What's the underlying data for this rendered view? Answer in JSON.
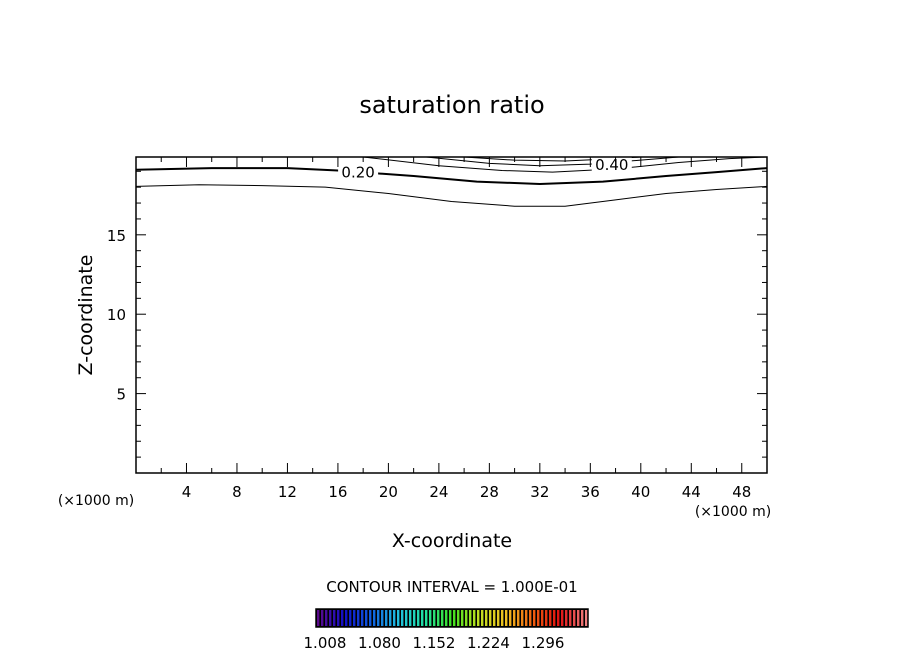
{
  "chart_data": {
    "type": "line",
    "subtype": "contour",
    "title": "saturation ratio",
    "xlabel": "X-coordinate",
    "ylabel": "Z-coordinate",
    "x_unit_left": "(×1000 m)",
    "x_unit_right": "(×1000 m)",
    "xlim": [
      0,
      50
    ],
    "ylim": [
      0,
      19.9
    ],
    "xticks": [
      4,
      8,
      12,
      16,
      20,
      24,
      28,
      32,
      36,
      40,
      44,
      48
    ],
    "xtick_labels": [
      "4",
      "8",
      "12",
      "16",
      "20",
      "24",
      "28",
      "32",
      "36",
      "40",
      "44",
      "48"
    ],
    "yticks": [
      5,
      10,
      15
    ],
    "ytick_labels": [
      "5",
      "10",
      "15"
    ],
    "grid": false,
    "contours": [
      {
        "name": "lower",
        "thick": false,
        "points": [
          [
            0,
            18.05
          ],
          [
            5,
            18.15
          ],
          [
            10,
            18.1
          ],
          [
            15,
            18.0
          ],
          [
            20,
            17.6
          ],
          [
            25,
            17.1
          ],
          [
            30,
            16.8
          ],
          [
            34,
            16.8
          ],
          [
            38,
            17.2
          ],
          [
            42,
            17.6
          ],
          [
            46,
            17.85
          ],
          [
            50,
            18.05
          ]
        ]
      },
      {
        "name": "0.20",
        "thick": true,
        "points": [
          [
            0,
            19.1
          ],
          [
            6,
            19.2
          ],
          [
            12,
            19.2
          ],
          [
            16,
            19.05
          ],
          [
            22,
            18.7
          ],
          [
            27,
            18.35
          ],
          [
            32,
            18.2
          ],
          [
            37,
            18.35
          ],
          [
            42,
            18.7
          ],
          [
            46,
            18.95
          ],
          [
            50,
            19.2
          ]
        ]
      },
      {
        "name": "upper1",
        "thick": false,
        "points": [
          [
            18,
            19.9
          ],
          [
            24,
            19.35
          ],
          [
            29,
            19.05
          ],
          [
            33,
            18.95
          ],
          [
            38,
            19.15
          ],
          [
            43,
            19.55
          ],
          [
            47,
            19.8
          ],
          [
            50,
            19.9
          ]
        ]
      },
      {
        "name": "upper2",
        "thick": false,
        "points": [
          [
            23,
            19.9
          ],
          [
            28,
            19.5
          ],
          [
            32,
            19.35
          ],
          [
            36,
            19.45
          ],
          [
            40,
            19.7
          ],
          [
            43,
            19.9
          ]
        ]
      },
      {
        "name": "upper3",
        "thick": false,
        "points": [
          [
            26,
            19.9
          ],
          [
            30,
            19.7
          ],
          [
            34,
            19.65
          ],
          [
            38,
            19.8
          ],
          [
            40,
            19.9
          ]
        ]
      }
    ],
    "contour_labels": [
      {
        "text": "0.20",
        "x": 17.6,
        "y": 19.0
      },
      {
        "text": "0.40",
        "x": 37.7,
        "y": 19.45
      }
    ],
    "contour_interval_text": "CONTOUR INTERVAL = 1.000E-01",
    "colorbar": {
      "range": [
        1.008,
        1.368
      ],
      "tick_labels": [
        "1.008",
        "1.080",
        "1.152",
        "1.224",
        "1.296"
      ],
      "colors": [
        "#5a0a8c",
        "#1010c8",
        "#1060e0",
        "#20c0e0",
        "#20e0a0",
        "#40e020",
        "#c0e020",
        "#f0c020",
        "#f06010",
        "#e01010",
        "#f08080"
      ]
    }
  }
}
